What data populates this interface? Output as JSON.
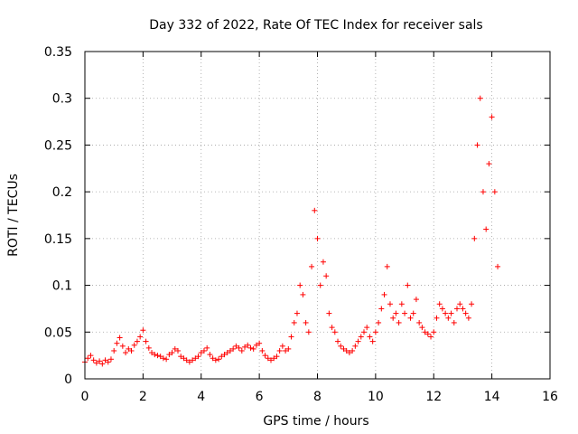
{
  "chart_data": {
    "type": "scatter",
    "title": "Day 332 of 2022, Rate Of TEC Index for receiver sals",
    "xlabel": "GPS time / hours",
    "ylabel": "ROTI / TECUs",
    "xlim": [
      0,
      16
    ],
    "ylim": [
      0,
      0.35
    ],
    "xticks": [
      0,
      2,
      4,
      6,
      8,
      10,
      12,
      14,
      16
    ],
    "yticks": [
      0,
      0.05,
      0.1,
      0.15,
      0.2,
      0.25,
      0.3,
      0.35
    ],
    "grid": true,
    "marker": "+",
    "color": "#ff0000",
    "series": [
      {
        "name": "sals",
        "x": [
          0.0,
          0.1,
          0.2,
          0.3,
          0.4,
          0.5,
          0.6,
          0.7,
          0.8,
          0.9,
          1.0,
          1.1,
          1.2,
          1.3,
          1.4,
          1.5,
          1.6,
          1.7,
          1.8,
          1.9,
          2.0,
          2.1,
          2.2,
          2.3,
          2.4,
          2.5,
          2.6,
          2.7,
          2.8,
          2.9,
          3.0,
          3.1,
          3.2,
          3.3,
          3.4,
          3.5,
          3.6,
          3.7,
          3.8,
          3.9,
          4.0,
          4.1,
          4.2,
          4.3,
          4.4,
          4.5,
          4.6,
          4.7,
          4.8,
          4.9,
          5.0,
          5.1,
          5.2,
          5.3,
          5.4,
          5.5,
          5.6,
          5.7,
          5.8,
          5.9,
          6.0,
          6.1,
          6.2,
          6.3,
          6.4,
          6.5,
          6.6,
          6.7,
          6.8,
          6.9,
          7.0,
          7.1,
          7.2,
          7.3,
          7.4,
          7.5,
          7.6,
          7.7,
          7.8,
          7.9,
          8.0,
          8.1,
          8.2,
          8.3,
          8.4,
          8.5,
          8.6,
          8.7,
          8.8,
          8.9,
          9.0,
          9.1,
          9.2,
          9.3,
          9.4,
          9.5,
          9.6,
          9.7,
          9.8,
          9.9,
          10.0,
          10.1,
          10.2,
          10.3,
          10.4,
          10.5,
          10.6,
          10.7,
          10.8,
          10.9,
          11.0,
          11.1,
          11.2,
          11.3,
          11.4,
          11.5,
          11.6,
          11.7,
          11.8,
          11.9,
          12.0,
          12.1,
          12.2,
          12.3,
          12.4,
          12.5,
          12.6,
          12.7,
          12.8,
          12.9,
          13.0,
          13.1,
          13.2,
          13.3,
          13.4,
          13.5,
          13.6,
          13.7,
          13.8,
          13.9,
          14.0,
          14.1,
          14.2
        ],
        "y": [
          0.018,
          0.022,
          0.025,
          0.02,
          0.017,
          0.019,
          0.016,
          0.02,
          0.018,
          0.021,
          0.03,
          0.038,
          0.044,
          0.035,
          0.028,
          0.032,
          0.03,
          0.036,
          0.04,
          0.045,
          0.052,
          0.04,
          0.033,
          0.028,
          0.026,
          0.025,
          0.024,
          0.022,
          0.021,
          0.026,
          0.028,
          0.032,
          0.03,
          0.024,
          0.022,
          0.02,
          0.018,
          0.02,
          0.022,
          0.024,
          0.028,
          0.03,
          0.033,
          0.026,
          0.022,
          0.02,
          0.021,
          0.024,
          0.026,
          0.028,
          0.03,
          0.032,
          0.035,
          0.033,
          0.03,
          0.034,
          0.036,
          0.033,
          0.032,
          0.036,
          0.038,
          0.03,
          0.025,
          0.022,
          0.02,
          0.022,
          0.024,
          0.03,
          0.035,
          0.03,
          0.032,
          0.045,
          0.06,
          0.07,
          0.1,
          0.09,
          0.06,
          0.05,
          0.12,
          0.18,
          0.15,
          0.1,
          0.125,
          0.11,
          0.07,
          0.055,
          0.05,
          0.04,
          0.035,
          0.032,
          0.03,
          0.028,
          0.03,
          0.035,
          0.04,
          0.045,
          0.05,
          0.055,
          0.045,
          0.04,
          0.05,
          0.06,
          0.075,
          0.09,
          0.12,
          0.08,
          0.065,
          0.07,
          0.06,
          0.08,
          0.07,
          0.1,
          0.065,
          0.07,
          0.085,
          0.06,
          0.055,
          0.05,
          0.048,
          0.045,
          0.05,
          0.065,
          0.08,
          0.075,
          0.07,
          0.065,
          0.07,
          0.06,
          0.075,
          0.08,
          0.075,
          0.07,
          0.065,
          0.08,
          0.15,
          0.25,
          0.3,
          0.2,
          0.16,
          0.23,
          0.28,
          0.2,
          0.12
        ]
      }
    ]
  }
}
